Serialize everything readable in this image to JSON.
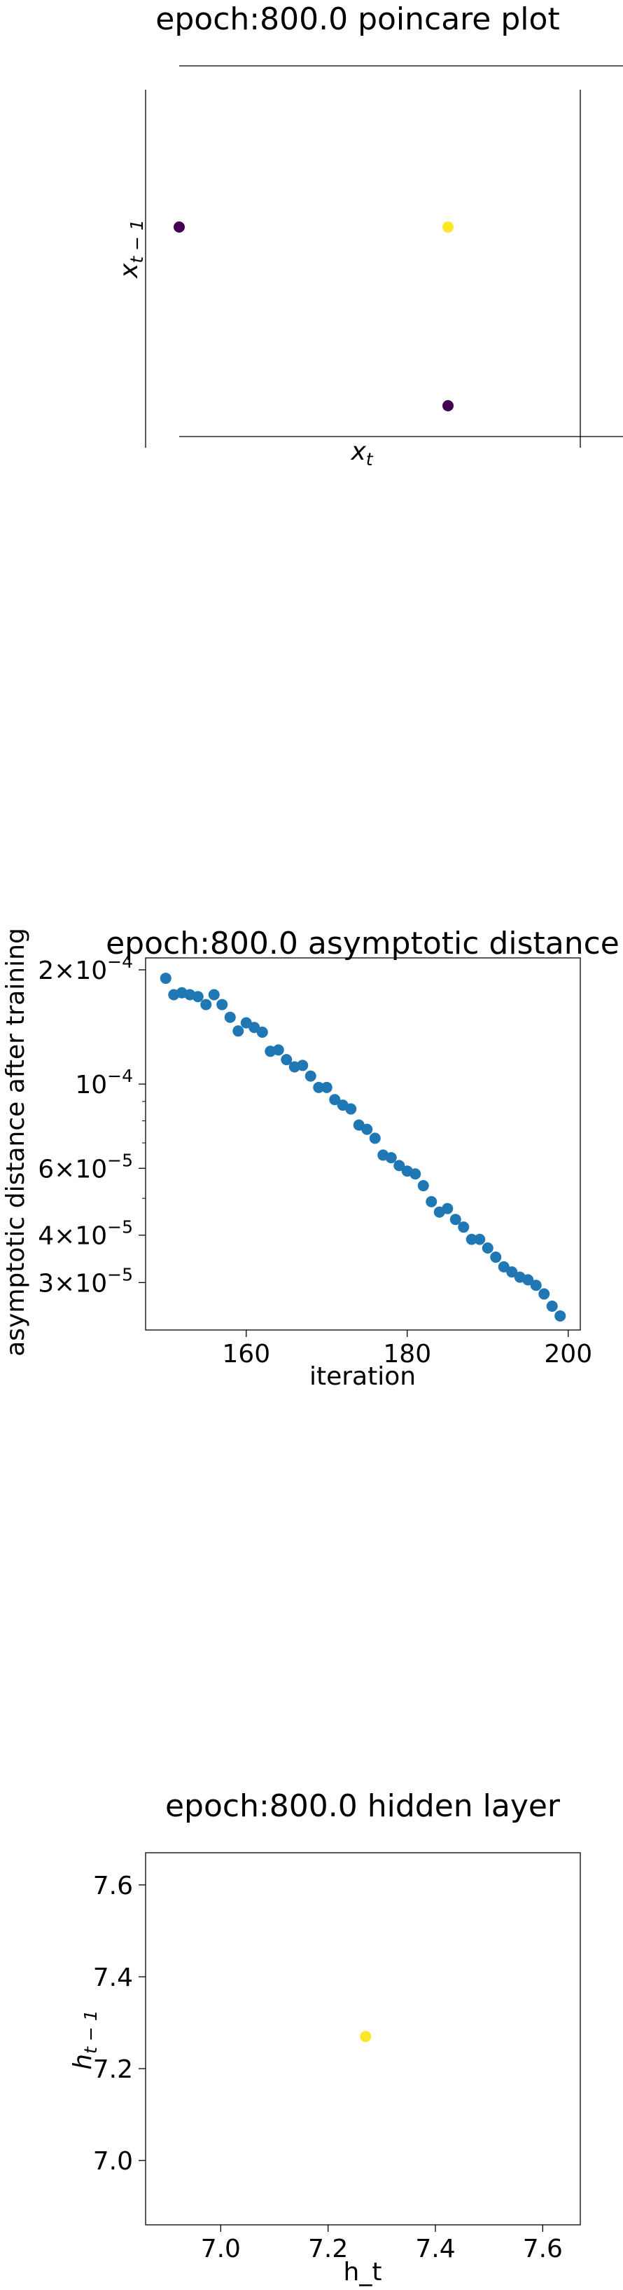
{
  "chart_data": [
    {
      "type": "scatter",
      "title": "epoch:800.0 poincare plot",
      "xlabel": "x_t",
      "ylabel": "x_{t-1}",
      "points": [
        {
          "x": 0,
          "y": 1,
          "color": "#440154"
        },
        {
          "x": 1,
          "y": 1,
          "color": "#fde725"
        },
        {
          "x": 1,
          "y": 0,
          "color": "#440154"
        }
      ]
    },
    {
      "type": "scatter",
      "title": "epoch:800.0 asymptotic distance",
      "xlabel": "iteration",
      "ylabel": "asymptotic distance after training",
      "yscale": "log",
      "xlim": [
        147.5,
        201.5
      ],
      "ylim": [
        2.25e-05,
        0.000215
      ],
      "xticks": [
        160,
        180,
        200
      ],
      "yticks": [
        {
          "value": 0.0002,
          "mant": "2",
          "exp": "−4"
        },
        {
          "value": 0.0001,
          "mant": "",
          "exp": "−4"
        },
        {
          "value": 6e-05,
          "mant": "6",
          "exp": "−5"
        },
        {
          "value": 4e-05,
          "mant": "4",
          "exp": "−5"
        },
        {
          "value": 3e-05,
          "mant": "3",
          "exp": "−5"
        }
      ],
      "color": "#1f77b4",
      "x": [
        150,
        151,
        152,
        153,
        154,
        155,
        156,
        157,
        158,
        159,
        160,
        161,
        162,
        163,
        164,
        165,
        166,
        167,
        168,
        169,
        170,
        171,
        172,
        173,
        174,
        175,
        176,
        177,
        178,
        179,
        180,
        181,
        182,
        183,
        184,
        185,
        186,
        187,
        188,
        189,
        190,
        191,
        192,
        193,
        194,
        195,
        196,
        197,
        198,
        199
      ],
      "y": [
        0.00019,
        0.000172,
        0.000174,
        0.000172,
        0.00017,
        0.000162,
        0.000172,
        0.000162,
        0.00015,
        0.000138,
        0.000145,
        0.000141,
        0.000137,
        0.000122,
        0.000123,
        0.000116,
        0.000111,
        0.000112,
        0.000105,
        9.8e-05,
        9.8e-05,
        9.1e-05,
        8.8e-05,
        8.6e-05,
        7.8e-05,
        7.6e-05,
        7.2e-05,
        6.5e-05,
        6.4e-05,
        6.1e-05,
        5.9e-05,
        5.8e-05,
        5.4e-05,
        4.9e-05,
        4.6e-05,
        4.7e-05,
        4.4e-05,
        4.2e-05,
        3.9e-05,
        3.9e-05,
        3.7e-05,
        3.5e-05,
        3.3e-05,
        3.2e-05,
        3.1e-05,
        3.05e-05,
        2.95e-05,
        2.8e-05,
        2.6e-05,
        2.45e-05
      ]
    },
    {
      "type": "scatter",
      "title": "epoch:800.0 hidden layer",
      "xlabel": "h_t",
      "ylabel": "h_{t-1}",
      "xlim": [
        6.86,
        7.67
      ],
      "ylim": [
        6.86,
        7.67
      ],
      "xticks": [
        "7.0",
        "7.2",
        "7.4",
        "7.6"
      ],
      "yticks": [
        "7.0",
        "7.2",
        "7.4",
        "7.6"
      ],
      "points": [
        {
          "x": 7.27,
          "y": 7.27,
          "color": "#fde725"
        }
      ]
    }
  ]
}
